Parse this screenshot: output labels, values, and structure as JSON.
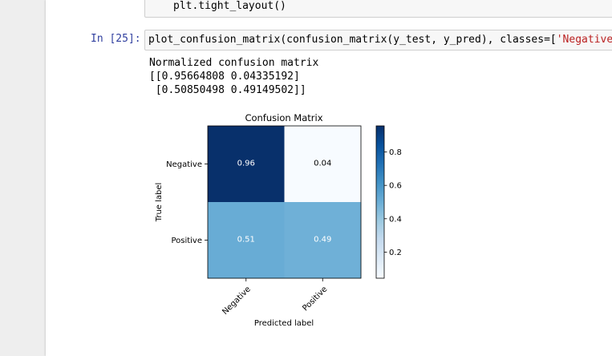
{
  "prev_cell": {
    "code": "plt.tight_layout()"
  },
  "cell": {
    "prompt": "In [25]:",
    "code_prefix": "plot_confusion_matrix(confusion_matrix(y_test, y_pred), classes=[",
    "code_string": "'Negative'"
  },
  "output": {
    "lines": [
      "Normalized confusion matrix",
      "[[0.95664808 0.04335192]",
      " [0.50850498 0.49149502]]"
    ]
  },
  "chart_data": {
    "type": "heatmap",
    "title": "Confusion Matrix",
    "xlabel": "Predicted label",
    "ylabel": "True label",
    "x_categories": [
      "Negative",
      "Positive"
    ],
    "y_categories": [
      "Negative",
      "Positive"
    ],
    "values": [
      [
        0.95664808,
        0.04335192
      ],
      [
        0.50850498,
        0.49149502
      ]
    ],
    "cell_labels": [
      [
        "0.96",
        "0.04"
      ],
      [
        "0.51",
        "0.49"
      ]
    ],
    "colormap": "Blues",
    "colorbar": {
      "ticks": [
        0.2,
        0.4,
        0.6,
        0.8
      ],
      "tick_labels": [
        "0.2",
        "0.4",
        "0.6",
        "0.8"
      ],
      "range": [
        0.04335192,
        0.95664808
      ]
    },
    "colors": {
      "max": "#08306b",
      "min": "#f7fbff",
      "text_dark": "#000000",
      "text_light": "#ffffff"
    }
  }
}
